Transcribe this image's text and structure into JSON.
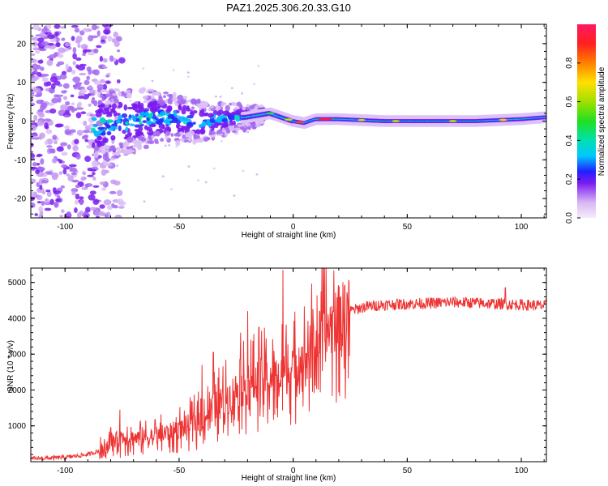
{
  "title": "PAZ1.2025.306.20.33.G10",
  "colors": {
    "trace": "#ee3333",
    "axis": "#000000",
    "band": "#7a1cf0",
    "background": "#ffffff"
  },
  "chart_data": [
    {
      "type": "heatmap",
      "xlabel": "Height of straight line (km)",
      "ylabel": "Frequency (Hz)",
      "xlim": [
        -115,
        111
      ],
      "ylim": [
        -25,
        25
      ],
      "xticks": [
        "-100",
        "-50",
        "0",
        "50",
        "100"
      ],
      "xtick_values": [
        -100,
        -50,
        0,
        50,
        100
      ],
      "yticks": [
        "20",
        "10",
        "0",
        "-10",
        "-20"
      ],
      "ytick_values": [
        20,
        10,
        0,
        -10,
        -20
      ],
      "colorbar": {
        "label": "Normalized spectral amplitude",
        "range": [
          0,
          1
        ],
        "ticks": [
          "0.0",
          "0.2",
          "0.4",
          "0.6",
          "0.8"
        ],
        "tick_values": [
          0.0,
          0.2,
          0.4,
          0.6,
          0.8
        ]
      },
      "ridge": {
        "x": [
          -115,
          -90,
          -80,
          -60,
          -40,
          -20,
          -10,
          0,
          5,
          10,
          20,
          40,
          60,
          80,
          100,
          111
        ],
        "center_hz": [
          -1,
          -1.5,
          -1,
          1,
          0,
          1,
          2,
          0,
          -0.5,
          0.5,
          0.5,
          0,
          0,
          0,
          0.5,
          1
        ]
      }
    },
    {
      "type": "line",
      "xlabel": "Height of straight line (km)",
      "ylabel": "SNR (10 * v/v)",
      "xlim": [
        -115,
        111
      ],
      "ylim": [
        0,
        5400
      ],
      "xticks": [
        "-100",
        "-50",
        "0",
        "50",
        "100"
      ],
      "xtick_values": [
        -100,
        -50,
        0,
        50,
        100
      ],
      "yticks": [
        "5000",
        "4000",
        "3000",
        "2000",
        "1000"
      ],
      "ytick_values": [
        5000,
        4000,
        3000,
        2000,
        1000
      ],
      "series": [
        {
          "name": "SNR",
          "x": [
            -115,
            -100,
            -90,
            -85,
            -80,
            -75,
            -70,
            -60,
            -50,
            -40,
            -35,
            -30,
            -25,
            -20,
            -15,
            -10,
            -5,
            0,
            5,
            10,
            15,
            20,
            25,
            30,
            35,
            40,
            50,
            60,
            70,
            80,
            90,
            100,
            111
          ],
          "values": [
            80,
            120,
            200,
            300,
            550,
            700,
            650,
            700,
            900,
            1200,
            1500,
            1700,
            2000,
            2100,
            2300,
            2300,
            2400,
            2600,
            2900,
            3300,
            3700,
            4000,
            4200,
            4300,
            4350,
            4380,
            4400,
            4420,
            4450,
            4430,
            4400,
            4380,
            4350
          ],
          "spikes": [
            {
              "x": -76,
              "value": 1450
            },
            {
              "x": -40,
              "value": 2700
            },
            {
              "x": -35,
              "value": 3050
            },
            {
              "x": -23,
              "value": 3600
            },
            {
              "x": -20,
              "value": 4200
            },
            {
              "x": -15,
              "value": 3750
            },
            {
              "x": -4.5,
              "value": 5350
            },
            {
              "x": 8,
              "value": 3900
            },
            {
              "x": 93,
              "value": 4850
            }
          ]
        }
      ]
    }
  ]
}
